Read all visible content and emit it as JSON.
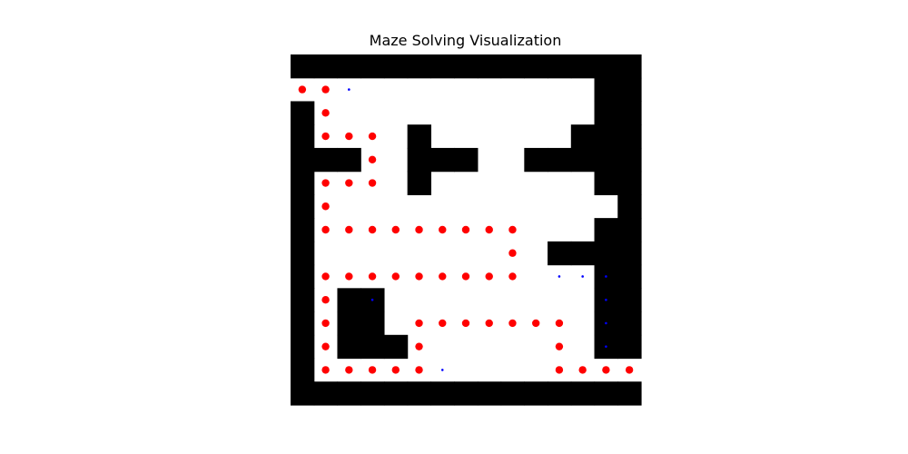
{
  "chart_data": {
    "type": "heatmap",
    "title": "Maze Solving Visualization",
    "grid_rows": 15,
    "grid_cols": 15,
    "axes_visible": false,
    "colors": {
      "wall": "#000000",
      "open": "#ffffff",
      "path": "#ff0000",
      "visited": "#0000ff"
    },
    "maze": [
      "111111111111111",
      "000000000000011",
      "100000000000011",
      "100001000000111",
      "111001110011111",
      "100001000000011",
      "100000000000001",
      "100000000000011",
      "100000000001111",
      "100000000000011",
      "101100000000011",
      "101100000000011",
      "101110000000011",
      "100000000000000",
      "111111111111111"
    ],
    "path_cells": [
      [
        1,
        0
      ],
      [
        1,
        1
      ],
      [
        2,
        1
      ],
      [
        3,
        1
      ],
      [
        3,
        2
      ],
      [
        3,
        3
      ],
      [
        4,
        3
      ],
      [
        5,
        3
      ],
      [
        5,
        2
      ],
      [
        5,
        1
      ],
      [
        6,
        1
      ],
      [
        7,
        1
      ],
      [
        7,
        2
      ],
      [
        7,
        3
      ],
      [
        7,
        4
      ],
      [
        7,
        5
      ],
      [
        7,
        6
      ],
      [
        7,
        7
      ],
      [
        7,
        8
      ],
      [
        7,
        9
      ],
      [
        8,
        9
      ],
      [
        9,
        9
      ],
      [
        9,
        8
      ],
      [
        9,
        7
      ],
      [
        9,
        6
      ],
      [
        9,
        5
      ],
      [
        9,
        4
      ],
      [
        9,
        3
      ],
      [
        9,
        2
      ],
      [
        9,
        1
      ],
      [
        10,
        1
      ],
      [
        11,
        1
      ],
      [
        12,
        1
      ],
      [
        13,
        1
      ],
      [
        13,
        2
      ],
      [
        13,
        3
      ],
      [
        13,
        4
      ],
      [
        13,
        5
      ],
      [
        12,
        5
      ],
      [
        11,
        5
      ],
      [
        11,
        6
      ],
      [
        11,
        7
      ],
      [
        11,
        8
      ],
      [
        11,
        9
      ],
      [
        11,
        10
      ],
      [
        11,
        11
      ],
      [
        12,
        11
      ],
      [
        13,
        11
      ],
      [
        13,
        12
      ],
      [
        13,
        13
      ],
      [
        13,
        14
      ]
    ],
    "visited_cells": [
      [
        1,
        2
      ],
      [
        9,
        11
      ],
      [
        9,
        12
      ],
      [
        9,
        13
      ],
      [
        10,
        3
      ],
      [
        10,
        13
      ],
      [
        11,
        13
      ],
      [
        12,
        13
      ],
      [
        13,
        6
      ]
    ]
  }
}
